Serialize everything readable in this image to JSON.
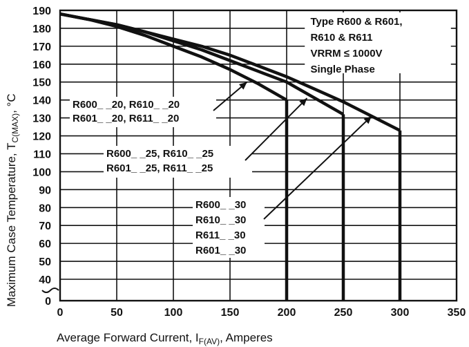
{
  "chart_data": {
    "type": "line",
    "title": "",
    "xlabel": "Average Forward Current, I",
    "xlabel_sub": "F(AV)",
    "xlabel_suffix": ", Amperes",
    "ylabel": "Maximum Case Temperature, T",
    "ylabel_sub": "C(MAX)",
    "ylabel_suffix": ", °C",
    "xlim": [
      0,
      350
    ],
    "ylim": [
      0,
      190
    ],
    "y_axis_break": "between 0 and 40",
    "grid": true,
    "x_ticks": [
      0,
      50,
      100,
      150,
      200,
      250,
      300,
      350
    ],
    "y_ticks": [
      0,
      40,
      50,
      60,
      70,
      80,
      90,
      100,
      110,
      120,
      130,
      140,
      150,
      160,
      170,
      180,
      190
    ],
    "legend_box": [
      "Type R600 & R601,",
      "R610 & R611",
      "VRRM ≤ 1000V",
      "Single Phase"
    ],
    "series": [
      {
        "name": "R600_ _20, R610_ _20 / R601_ _20, R611_ _20",
        "x": [
          0,
          25,
          50,
          75,
          100,
          125,
          150,
          175,
          200
        ],
        "y": [
          188,
          185,
          181,
          176,
          170,
          164,
          157,
          149,
          140
        ],
        "drop_to_zero_at": 200
      },
      {
        "name": "R600_ _25, R610_ _25 / R601_ _25, R611_ _25",
        "x": [
          0,
          25,
          50,
          75,
          100,
          125,
          150,
          175,
          200,
          225,
          250
        ],
        "y": [
          188,
          185,
          182,
          178,
          173,
          168,
          162,
          156,
          150,
          141,
          132
        ],
        "drop_to_zero_at": 250
      },
      {
        "name": "R600_ _30 / R610_ _30 / R611_ _30 / R601_ _30",
        "x": [
          0,
          25,
          50,
          75,
          100,
          125,
          150,
          175,
          200,
          225,
          250,
          275,
          300
        ],
        "y": [
          188,
          185,
          182,
          178,
          174,
          170,
          165,
          159,
          153,
          146,
          139,
          131,
          123
        ],
        "drop_to_zero_at": 300
      }
    ],
    "annotations": [
      {
        "lines": [
          "R600_ _20, R610_ _20",
          "R601_ _20, R611_ _20"
        ],
        "arrow_to": [
          165,
          150
        ]
      },
      {
        "lines": [
          "R600_ _25, R610_ _25",
          "R601_ _25, R611_ _25"
        ],
        "arrow_to": [
          218,
          141
        ]
      },
      {
        "lines": [
          "R600_ _30",
          "R610_ _30",
          "R611_ _30",
          "R601_ _30"
        ],
        "arrow_to": [
          275,
          131
        ]
      }
    ]
  }
}
